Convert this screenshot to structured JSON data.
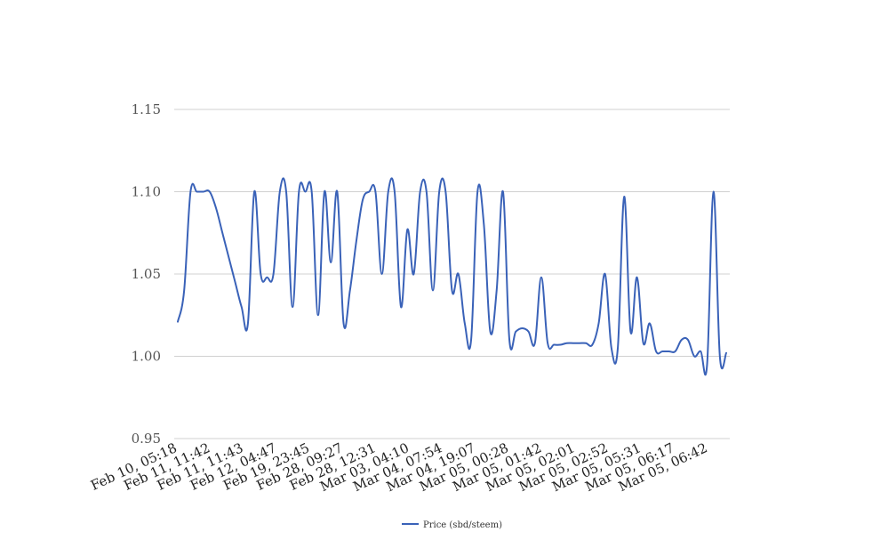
{
  "chart_data": {
    "type": "line",
    "title": "",
    "xlabel": "",
    "ylabel": "",
    "ylim": [
      0.95,
      1.15
    ],
    "y_ticks": [
      "0.95",
      "1.00",
      "1.05",
      "1.10",
      "1.15"
    ],
    "x_tick_labels": [
      "Feb 10, 05:18",
      "Feb 11, 11:42",
      "Feb 11, 11:43",
      "Feb 12, 04:47",
      "Feb 19, 23:45",
      "Feb 28, 09:27",
      "Feb 28, 12:31",
      "Mar 03, 04:10",
      "Mar 04, 07:54",
      "Mar 04, 19:07",
      "Mar 05, 00:28",
      "Mar 05, 01:42",
      "Mar 05, 02:01",
      "Mar 05, 02:52",
      "Mar 05, 05:31",
      "Mar 05, 06:17",
      "Mar 05, 06:42"
    ],
    "grid": true,
    "legend": "bottom",
    "series": [
      {
        "name": "Price (sbd/steem)",
        "color": "#3a62b8",
        "values": [
          1.021,
          1.04,
          1.1,
          1.1,
          1.1,
          1.1,
          1.09,
          1.075,
          1.06,
          1.045,
          1.03,
          1.02,
          1.1,
          1.05,
          1.048,
          1.05,
          1.1,
          1.1,
          1.03,
          1.1,
          1.1,
          1.1,
          1.025,
          1.1,
          1.057,
          1.1,
          1.02,
          1.04,
          1.07,
          1.095,
          1.1,
          1.1,
          1.05,
          1.1,
          1.1,
          1.03,
          1.077,
          1.05,
          1.1,
          1.1,
          1.04,
          1.1,
          1.1,
          1.04,
          1.05,
          1.02,
          1.01,
          1.1,
          1.08,
          1.015,
          1.04,
          1.1,
          1.01,
          1.015,
          1.017,
          1.015,
          1.008,
          1.048,
          1.008,
          1.007,
          1.007,
          1.008,
          1.008,
          1.008,
          1.008,
          1.007,
          1.02,
          1.05,
          1.005,
          1.005,
          1.097,
          1.015,
          1.048,
          1.008,
          1.02,
          1.003,
          1.003,
          1.003,
          1.003,
          1.01,
          1.01,
          1.0,
          1.003,
          0.995,
          1.1,
          1.0,
          1.002
        ]
      }
    ]
  }
}
